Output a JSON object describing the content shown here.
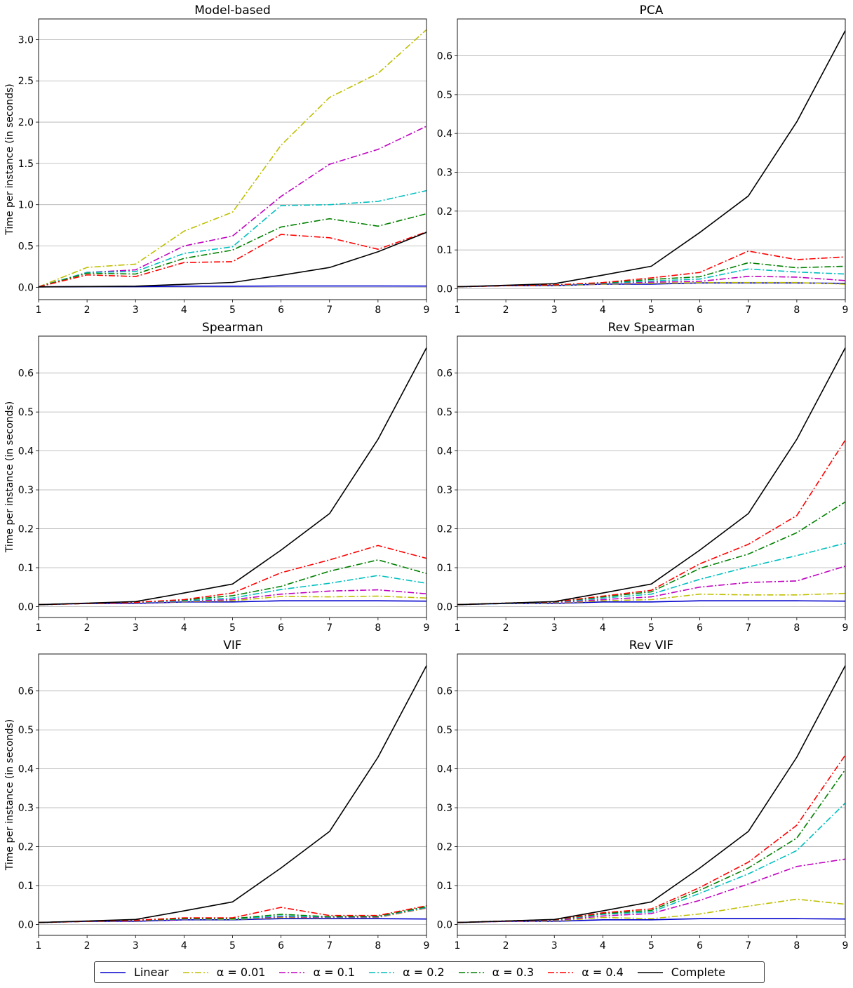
{
  "figure": {
    "ylabel": "Time per instance (in seconds)",
    "legend": [
      {
        "key": "linear",
        "label": "Linear",
        "color": "#0000cc",
        "dash": "solid"
      },
      {
        "key": "a001",
        "label": "α = 0.01",
        "color": "#bfbf00",
        "dash": "dashdot"
      },
      {
        "key": "a01",
        "label": "α = 0.1",
        "color": "#bf00bf",
        "dash": "dashdot"
      },
      {
        "key": "a02",
        "label": "α = 0.2",
        "color": "#00bfbf",
        "dash": "dashdot"
      },
      {
        "key": "a03",
        "label": "α = 0.3",
        "color": "#008000",
        "dash": "dashdot"
      },
      {
        "key": "a04",
        "label": "α = 0.4",
        "color": "#ff0000",
        "dash": "dashdot"
      },
      {
        "key": "complete",
        "label": "Complete",
        "color": "#000000",
        "dash": "solid"
      }
    ]
  },
  "chart_data": [
    {
      "type": "line",
      "title": "Model-based",
      "ylabel": "Time per instance (in seconds)",
      "x": [
        1,
        2,
        3,
        4,
        5,
        6,
        7,
        8,
        9
      ],
      "xticks": [
        "1",
        "2",
        "3",
        "4",
        "5",
        "6",
        "7",
        "8",
        "9"
      ],
      "ylim": [
        -0.15,
        3.25
      ],
      "yticks": [
        0.0,
        0.5,
        1.0,
        1.5,
        2.0,
        2.5,
        3.0
      ],
      "ytick_labels": [
        "0.0",
        "0.5",
        "1.0",
        "1.5",
        "2.0",
        "2.5",
        "3.0"
      ],
      "grid": "y",
      "series": [
        {
          "key": "linear",
          "values": [
            0.005,
            0.008,
            0.008,
            0.012,
            0.012,
            0.015,
            0.015,
            0.015,
            0.014
          ]
        },
        {
          "key": "a001",
          "values": [
            0.005,
            0.24,
            0.28,
            0.68,
            0.91,
            1.72,
            2.3,
            2.59,
            3.12
          ]
        },
        {
          "key": "a01",
          "values": [
            0.005,
            0.18,
            0.21,
            0.5,
            0.62,
            1.1,
            1.49,
            1.67,
            1.95
          ]
        },
        {
          "key": "a02",
          "values": [
            0.005,
            0.18,
            0.19,
            0.41,
            0.49,
            0.99,
            1.0,
            1.04,
            1.17
          ]
        },
        {
          "key": "a03",
          "values": [
            0.005,
            0.17,
            0.16,
            0.35,
            0.45,
            0.73,
            0.83,
            0.74,
            0.89
          ]
        },
        {
          "key": "a04",
          "values": [
            0.005,
            0.15,
            0.13,
            0.3,
            0.31,
            0.64,
            0.6,
            0.46,
            0.67
          ]
        },
        {
          "key": "complete",
          "values": [
            0.005,
            0.009,
            0.013,
            0.035,
            0.058,
            0.145,
            0.239,
            0.43,
            0.665
          ]
        }
      ]
    },
    {
      "type": "line",
      "title": "PCA",
      "ylabel": "",
      "x": [
        1,
        2,
        3,
        4,
        5,
        6,
        7,
        8,
        9
      ],
      "xticks": [
        "1",
        "2",
        "3",
        "4",
        "5",
        "6",
        "7",
        "8",
        "9"
      ],
      "ylim": [
        -0.028,
        0.695
      ],
      "yticks": [
        0.0,
        0.1,
        0.2,
        0.3,
        0.4,
        0.5,
        0.6
      ],
      "ytick_labels": [
        "0.0",
        "0.1",
        "0.2",
        "0.3",
        "0.4",
        "0.5",
        "0.6"
      ],
      "grid": "y",
      "series": [
        {
          "key": "linear",
          "values": [
            0.005,
            0.008,
            0.008,
            0.012,
            0.012,
            0.015,
            0.015,
            0.015,
            0.014
          ]
        },
        {
          "key": "a001",
          "values": [
            0.005,
            0.008,
            0.008,
            0.012,
            0.014,
            0.016,
            0.016,
            0.016,
            0.012
          ]
        },
        {
          "key": "a01",
          "values": [
            0.005,
            0.008,
            0.009,
            0.013,
            0.017,
            0.019,
            0.032,
            0.03,
            0.021
          ]
        },
        {
          "key": "a02",
          "values": [
            0.005,
            0.008,
            0.009,
            0.014,
            0.02,
            0.025,
            0.051,
            0.043,
            0.038
          ]
        },
        {
          "key": "a03",
          "values": [
            0.005,
            0.008,
            0.01,
            0.015,
            0.024,
            0.031,
            0.067,
            0.054,
            0.058
          ]
        },
        {
          "key": "a04",
          "values": [
            0.005,
            0.008,
            0.01,
            0.016,
            0.028,
            0.042,
            0.097,
            0.075,
            0.082
          ]
        },
        {
          "key": "complete",
          "values": [
            0.005,
            0.009,
            0.013,
            0.035,
            0.058,
            0.145,
            0.239,
            0.43,
            0.665
          ]
        }
      ]
    },
    {
      "type": "line",
      "title": "Spearman",
      "ylabel": "Time per instance (in seconds)",
      "x": [
        1,
        2,
        3,
        4,
        5,
        6,
        7,
        8,
        9
      ],
      "xticks": [
        "1",
        "2",
        "3",
        "4",
        "5",
        "6",
        "7",
        "8",
        "9"
      ],
      "ylim": [
        -0.028,
        0.695
      ],
      "yticks": [
        0.0,
        0.1,
        0.2,
        0.3,
        0.4,
        0.5,
        0.6
      ],
      "ytick_labels": [
        "0.0",
        "0.1",
        "0.2",
        "0.3",
        "0.4",
        "0.5",
        "0.6"
      ],
      "grid": "y",
      "series": [
        {
          "key": "linear",
          "values": [
            0.005,
            0.008,
            0.008,
            0.012,
            0.012,
            0.015,
            0.015,
            0.015,
            0.014
          ]
        },
        {
          "key": "a001",
          "values": [
            0.005,
            0.008,
            0.009,
            0.013,
            0.015,
            0.026,
            0.025,
            0.027,
            0.022
          ]
        },
        {
          "key": "a01",
          "values": [
            0.005,
            0.008,
            0.009,
            0.014,
            0.018,
            0.032,
            0.04,
            0.043,
            0.033
          ]
        },
        {
          "key": "a02",
          "values": [
            0.005,
            0.008,
            0.01,
            0.015,
            0.022,
            0.044,
            0.06,
            0.08,
            0.06
          ]
        },
        {
          "key": "a03",
          "values": [
            0.005,
            0.008,
            0.011,
            0.017,
            0.028,
            0.052,
            0.091,
            0.12,
            0.085
          ]
        },
        {
          "key": "a04",
          "values": [
            0.005,
            0.008,
            0.011,
            0.018,
            0.035,
            0.087,
            0.12,
            0.157,
            0.124
          ]
        },
        {
          "key": "complete",
          "values": [
            0.005,
            0.009,
            0.013,
            0.035,
            0.058,
            0.145,
            0.239,
            0.43,
            0.665
          ]
        }
      ]
    },
    {
      "type": "line",
      "title": "Rev Spearman",
      "ylabel": "",
      "x": [
        1,
        2,
        3,
        4,
        5,
        6,
        7,
        8,
        9
      ],
      "xticks": [
        "1",
        "2",
        "3",
        "4",
        "5",
        "6",
        "7",
        "8",
        "9"
      ],
      "ylim": [
        -0.028,
        0.695
      ],
      "yticks": [
        0.0,
        0.1,
        0.2,
        0.3,
        0.4,
        0.5,
        0.6
      ],
      "ytick_labels": [
        "0.0",
        "0.1",
        "0.2",
        "0.3",
        "0.4",
        "0.5",
        "0.6"
      ],
      "grid": "y",
      "series": [
        {
          "key": "linear",
          "values": [
            0.005,
            0.008,
            0.008,
            0.012,
            0.012,
            0.015,
            0.015,
            0.015,
            0.014
          ]
        },
        {
          "key": "a001",
          "values": [
            0.005,
            0.008,
            0.009,
            0.015,
            0.018,
            0.032,
            0.03,
            0.03,
            0.034
          ]
        },
        {
          "key": "a01",
          "values": [
            0.005,
            0.008,
            0.01,
            0.018,
            0.025,
            0.05,
            0.062,
            0.066,
            0.104
          ]
        },
        {
          "key": "a02",
          "values": [
            0.005,
            0.008,
            0.011,
            0.022,
            0.032,
            0.07,
            0.102,
            0.131,
            0.163
          ]
        },
        {
          "key": "a03",
          "values": [
            0.005,
            0.009,
            0.012,
            0.025,
            0.038,
            0.098,
            0.135,
            0.19,
            0.269
          ]
        },
        {
          "key": "a04",
          "values": [
            0.005,
            0.009,
            0.012,
            0.027,
            0.042,
            0.11,
            0.16,
            0.234,
            0.428
          ]
        },
        {
          "key": "complete",
          "values": [
            0.005,
            0.009,
            0.013,
            0.035,
            0.058,
            0.145,
            0.239,
            0.43,
            0.665
          ]
        }
      ]
    },
    {
      "type": "line",
      "title": "VIF",
      "ylabel": "Time per instance (in seconds)",
      "x": [
        1,
        2,
        3,
        4,
        5,
        6,
        7,
        8,
        9
      ],
      "xticks": [
        "1",
        "2",
        "3",
        "4",
        "5",
        "6",
        "7",
        "8",
        "9"
      ],
      "ylim": [
        -0.028,
        0.695
      ],
      "yticks": [
        0.0,
        0.1,
        0.2,
        0.3,
        0.4,
        0.5,
        0.6
      ],
      "ytick_labels": [
        "0.0",
        "0.1",
        "0.2",
        "0.3",
        "0.4",
        "0.5",
        "0.6"
      ],
      "grid": "y",
      "series": [
        {
          "key": "linear",
          "values": [
            0.005,
            0.008,
            0.008,
            0.012,
            0.012,
            0.015,
            0.015,
            0.015,
            0.014
          ]
        },
        {
          "key": "a001",
          "values": [
            0.005,
            0.008,
            0.009,
            0.013,
            0.013,
            0.018,
            0.017,
            0.018,
            0.042
          ]
        },
        {
          "key": "a01",
          "values": [
            0.005,
            0.008,
            0.009,
            0.013,
            0.014,
            0.02,
            0.018,
            0.019,
            0.043
          ]
        },
        {
          "key": "a02",
          "values": [
            0.005,
            0.008,
            0.01,
            0.014,
            0.014,
            0.022,
            0.019,
            0.02,
            0.044
          ]
        },
        {
          "key": "a03",
          "values": [
            0.005,
            0.008,
            0.01,
            0.015,
            0.015,
            0.026,
            0.02,
            0.021,
            0.046
          ]
        },
        {
          "key": "a04",
          "values": [
            0.005,
            0.008,
            0.011,
            0.017,
            0.017,
            0.044,
            0.023,
            0.023,
            0.048
          ]
        },
        {
          "key": "complete",
          "values": [
            0.005,
            0.009,
            0.013,
            0.035,
            0.058,
            0.145,
            0.239,
            0.43,
            0.665
          ]
        }
      ]
    },
    {
      "type": "line",
      "title": "Rev VIF",
      "ylabel": "",
      "x": [
        1,
        2,
        3,
        4,
        5,
        6,
        7,
        8,
        9
      ],
      "xticks": [
        "1",
        "2",
        "3",
        "4",
        "5",
        "6",
        "7",
        "8",
        "9"
      ],
      "ylim": [
        -0.028,
        0.695
      ],
      "yticks": [
        0.0,
        0.1,
        0.2,
        0.3,
        0.4,
        0.5,
        0.6
      ],
      "ytick_labels": [
        "0.0",
        "0.1",
        "0.2",
        "0.3",
        "0.4",
        "0.5",
        "0.6"
      ],
      "grid": "y",
      "series": [
        {
          "key": "linear",
          "values": [
            0.005,
            0.008,
            0.008,
            0.012,
            0.012,
            0.015,
            0.015,
            0.015,
            0.014
          ]
        },
        {
          "key": "a001",
          "values": [
            0.005,
            0.008,
            0.009,
            0.018,
            0.015,
            0.027,
            0.047,
            0.065,
            0.052
          ]
        },
        {
          "key": "a01",
          "values": [
            0.005,
            0.008,
            0.01,
            0.022,
            0.028,
            0.062,
            0.104,
            0.149,
            0.168
          ]
        },
        {
          "key": "a02",
          "values": [
            0.005,
            0.009,
            0.011,
            0.026,
            0.032,
            0.08,
            0.13,
            0.19,
            0.312
          ]
        },
        {
          "key": "a03",
          "values": [
            0.005,
            0.009,
            0.012,
            0.028,
            0.036,
            0.088,
            0.145,
            0.222,
            0.398
          ]
        },
        {
          "key": "a04",
          "values": [
            0.005,
            0.009,
            0.012,
            0.03,
            0.04,
            0.095,
            0.16,
            0.255,
            0.435
          ]
        },
        {
          "key": "complete",
          "values": [
            0.005,
            0.009,
            0.013,
            0.035,
            0.058,
            0.145,
            0.239,
            0.43,
            0.665
          ]
        }
      ]
    }
  ]
}
